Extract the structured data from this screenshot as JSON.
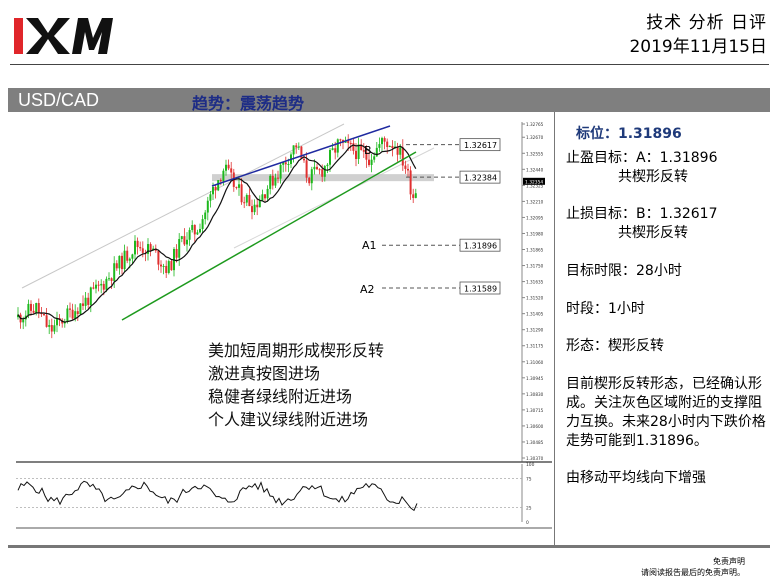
{
  "header": {
    "logo_text": "XM",
    "report_type": "技术 分析 日评",
    "date": "2019年11月15日"
  },
  "title_bar": {
    "symbol": "USD/CAD",
    "trend": "趋势：震荡趋势"
  },
  "chart_data": {
    "type": "candlestick",
    "title": "",
    "ylim": [
      1.3037,
      1.32765
    ],
    "y_ticks": [
      "1.32765",
      "1.32670",
      "1.32555",
      "1.32440",
      "1.32325",
      "1.32210",
      "1.32095",
      "1.31980",
      "1.31865",
      "1.31750",
      "1.31635",
      "1.31520",
      "1.31405",
      "1.31290",
      "1.31175",
      "1.31060",
      "1.30945",
      "1.30830",
      "1.30715",
      "1.30600",
      "1.30485",
      "1.30370"
    ],
    "current_price_label": "1.32354",
    "levels": [
      {
        "value": 1.32617,
        "label": "1.32617",
        "tag": "B"
      },
      {
        "value": 1.32384,
        "label": "1.32384",
        "tag": ""
      },
      {
        "value": 1.31896,
        "label": "1.31896",
        "tag": "A1"
      },
      {
        "value": 1.31589,
        "label": "1.31589",
        "tag": "A2"
      }
    ],
    "indicator_ticks": [
      "100",
      "75",
      "25",
      "0"
    ],
    "annotations": [
      "美加短周期形成楔形反转",
      "激进真按图进场",
      "稳健者绿线附近进场",
      "个人建议绿线附近进场"
    ],
    "colors": {
      "up": "#1db81d",
      "down": "#e03030",
      "ma": "#111111",
      "trend_top": "#1f2aa0",
      "trend_bottom": "#1d9a1d",
      "channel": "#c8c8c8",
      "zone": "#c8c8c8"
    }
  },
  "panel": {
    "level_label": "标位：1.31896",
    "tp_title": "止盈目标：A：1.31896",
    "tp_sub": "共楔形反转",
    "sl_title": "止损目标：B：1.32617",
    "sl_sub": "共楔形反转",
    "time_limit": "目标时限：28小时",
    "period": "时段：1小时",
    "pattern": "形态：楔形反转",
    "analysis": "目前楔形反转形态，已经确认形成。关注灰色区域附近的支撑阻力互换。未来28小时内下跌价格走势可能到1.31896。",
    "note": "由移动平均线向下增强"
  },
  "disclaimer": {
    "line1": "免责声明",
    "line2": "请阅读报告最后的免责声明。"
  }
}
